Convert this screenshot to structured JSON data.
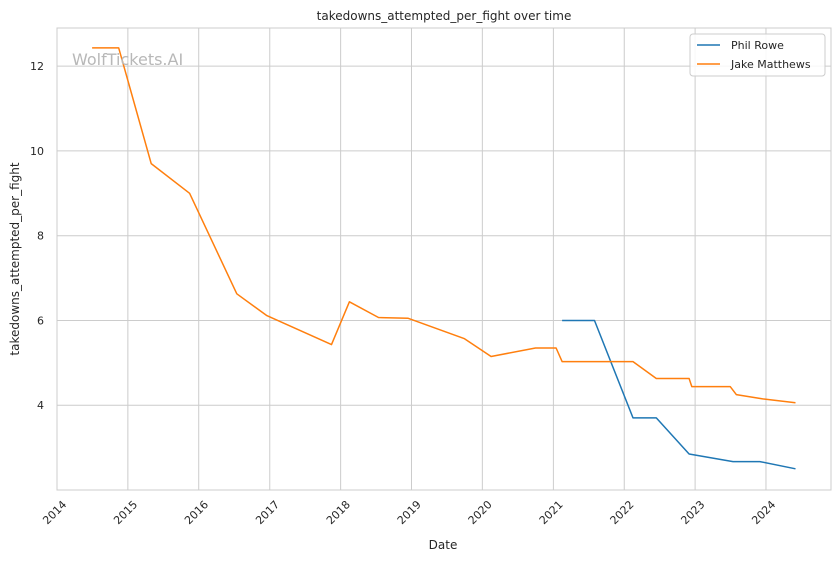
{
  "watermark": "WolfTickets.AI",
  "chart_data": {
    "type": "line",
    "title": "takedowns_attempted_per_fight over time",
    "xlabel": "Date",
    "ylabel": "takedowns_attempted_per_fight",
    "x_ticks": [
      "2014",
      "2015",
      "2016",
      "2017",
      "2018",
      "2019",
      "2020",
      "2021",
      "2022",
      "2023",
      "2024"
    ],
    "y_ticks": [
      4,
      6,
      8,
      10,
      12
    ],
    "xlim": [
      "2014-01-01",
      "2024-12-01"
    ],
    "ylim": [
      2.0,
      12.9
    ],
    "grid": true,
    "legend_position": "top-right",
    "series": [
      {
        "name": "Phil Rowe",
        "color": "#1f77b4",
        "points": [
          {
            "x": "2021-02-15",
            "y": 6.0
          },
          {
            "x": "2021-08-01",
            "y": 6.0
          },
          {
            "x": "2022-02-15",
            "y": 3.7
          },
          {
            "x": "2022-06-15",
            "y": 3.7
          },
          {
            "x": "2022-12-01",
            "y": 2.85
          },
          {
            "x": "2023-07-15",
            "y": 2.67
          },
          {
            "x": "2023-12-01",
            "y": 2.67
          },
          {
            "x": "2024-06-01",
            "y": 2.5
          }
        ]
      },
      {
        "name": "Jake Matthews",
        "color": "#ff7f0e",
        "points": [
          {
            "x": "2014-07-01",
            "y": 12.43
          },
          {
            "x": "2014-11-15",
            "y": 12.43
          },
          {
            "x": "2015-05-01",
            "y": 9.7
          },
          {
            "x": "2015-11-15",
            "y": 9.0
          },
          {
            "x": "2016-07-15",
            "y": 6.63
          },
          {
            "x": "2016-12-15",
            "y": 6.12
          },
          {
            "x": "2017-11-15",
            "y": 5.43
          },
          {
            "x": "2018-02-15",
            "y": 6.44
          },
          {
            "x": "2018-07-15",
            "y": 6.07
          },
          {
            "x": "2018-12-15",
            "y": 6.05
          },
          {
            "x": "2019-10-01",
            "y": 5.57
          },
          {
            "x": "2020-02-15",
            "y": 5.15
          },
          {
            "x": "2020-10-01",
            "y": 5.35
          },
          {
            "x": "2021-01-15",
            "y": 5.35
          },
          {
            "x": "2021-02-15",
            "y": 5.03
          },
          {
            "x": "2022-02-15",
            "y": 5.03
          },
          {
            "x": "2022-06-15",
            "y": 4.63
          },
          {
            "x": "2022-12-01",
            "y": 4.63
          },
          {
            "x": "2022-12-15",
            "y": 4.44
          },
          {
            "x": "2023-07-01",
            "y": 4.44
          },
          {
            "x": "2023-08-01",
            "y": 4.25
          },
          {
            "x": "2023-12-15",
            "y": 4.15
          },
          {
            "x": "2024-06-01",
            "y": 4.06
          }
        ]
      }
    ]
  }
}
